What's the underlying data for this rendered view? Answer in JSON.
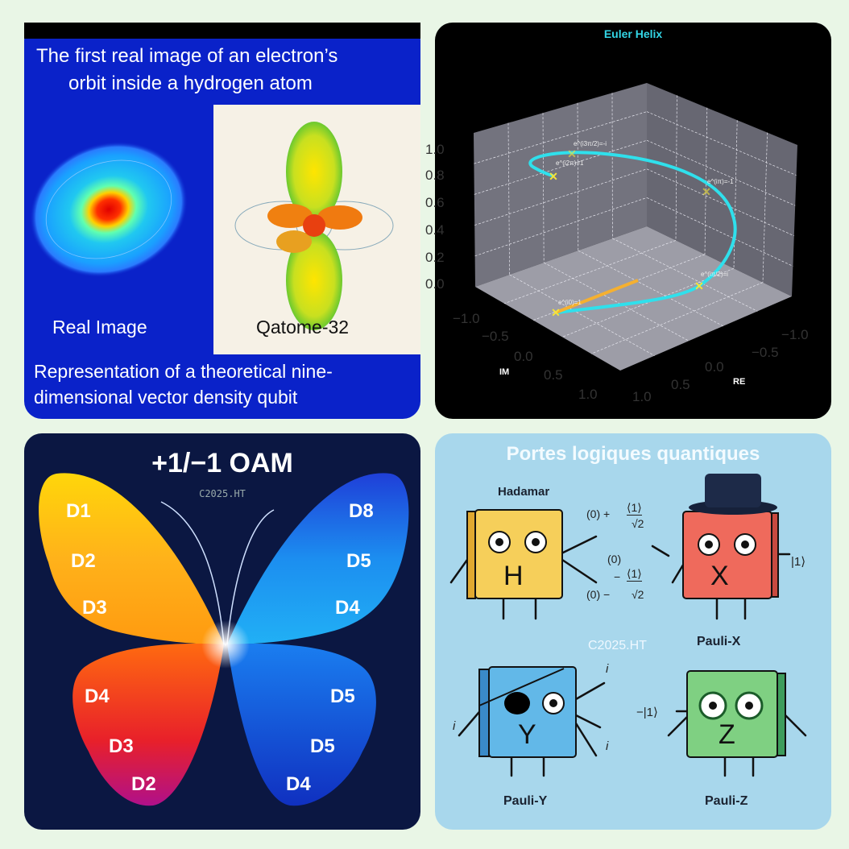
{
  "hydrogen_panel": {
    "title_line1": "The first real image of an electron’s",
    "title_line2": "orbit inside a hydrogen atom",
    "left_label": "Real Image",
    "right_label": "Qatome-32",
    "caption_line1": "Representation of a theoretical nine-",
    "caption_line2": "dimensional vector density qubit"
  },
  "euler_panel": {
    "title": "Euler Helix",
    "z_ticks": [
      "0.0",
      "0.2",
      "0.4",
      "0.6",
      "0.8",
      "1.0"
    ],
    "im_label": "IM",
    "im_ticks": [
      "−1.0",
      "−0.5",
      "0.0",
      "0.5",
      "1.0"
    ],
    "re_label": "RE",
    "re_ticks": [
      "−1.0",
      "−0.5",
      "0.0",
      "0.5",
      "1.0"
    ],
    "annotations": [
      "e^(i3π/2)=-i",
      "e^(i2π)=1",
      "e^(iπ)=-1",
      "e^(iπ/2)=i",
      "e^(i0)=1"
    ],
    "colors": {
      "helix": "#2fe0ec",
      "marker": "#f5e43a",
      "base_line": "#f5b030",
      "title": "#33d6e6"
    }
  },
  "butterfly_panel": {
    "title": "+1/−1 OAM",
    "watermark": "C2025.HT",
    "left_upper": [
      "D1",
      "D2",
      "D3"
    ],
    "right_upper": [
      "D8",
      "D5",
      "D4"
    ],
    "left_lower": [
      "D4",
      "D3",
      "D2"
    ],
    "right_lower": [
      "D5",
      "D5",
      "D4"
    ]
  },
  "gates_panel": {
    "title": "Portes logiques quantiques",
    "watermark": "C2025.HT",
    "hadamard": {
      "name": "Hadamar",
      "letter": "H"
    },
    "pauli_x": {
      "name": "Pauli-X",
      "letter": "X",
      "output": "|1⟩"
    },
    "pauli_y": {
      "name": "Pauli-Y",
      "letter": "Y",
      "phase": "i"
    },
    "pauli_z": {
      "name": "Pauli-Z",
      "letter": "Z",
      "output": "−|1⟩"
    },
    "formula_plus_left": "(0) +",
    "formula_num": "⟨1⟩",
    "formula_den": "√2",
    "formula_zero": "(0)",
    "formula_minus_mid": "−",
    "formula_minus_left": "(0) −"
  }
}
